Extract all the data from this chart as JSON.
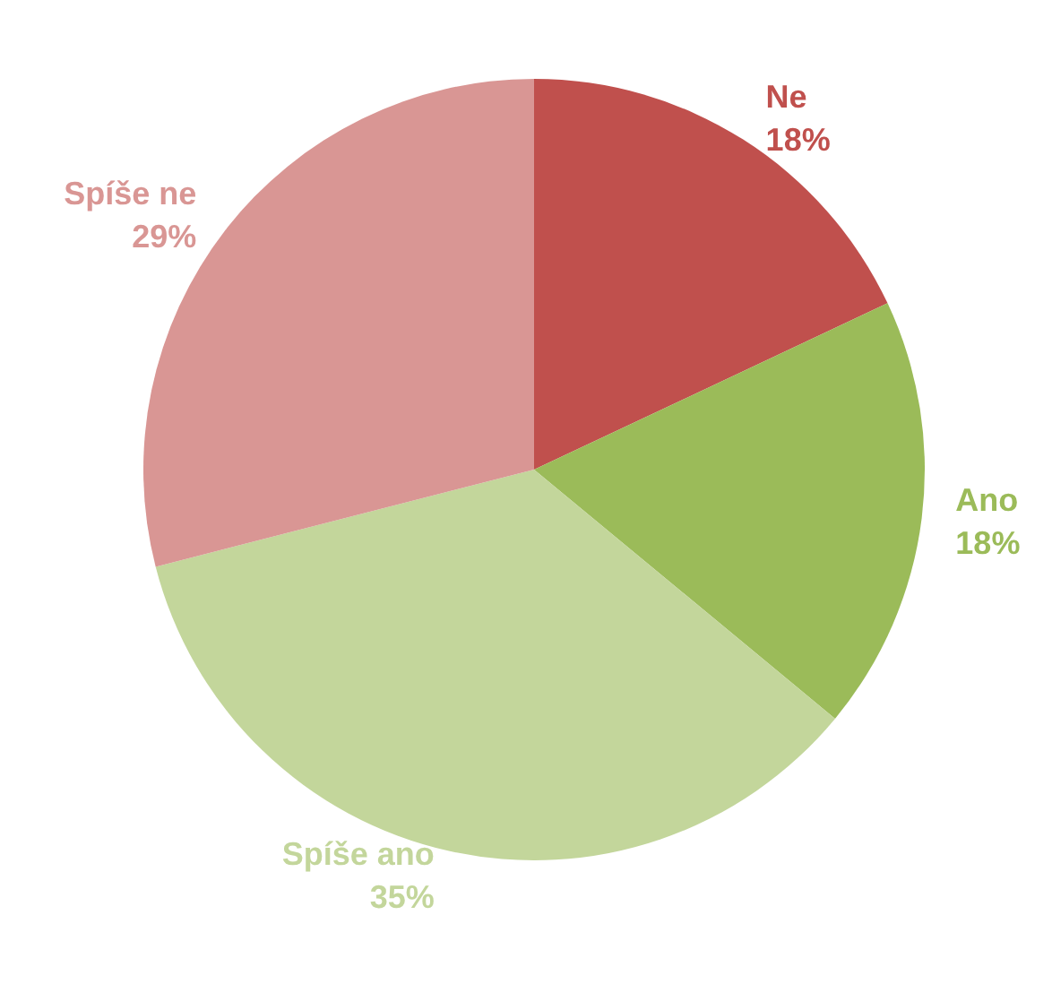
{
  "chart_data": {
    "type": "pie",
    "categories": [
      "Ne",
      "Ano",
      "Spíše ano",
      "Spíše ne"
    ],
    "values": [
      18,
      18,
      35,
      29
    ],
    "value_labels": [
      "18%",
      "18%",
      "35%",
      "29%"
    ],
    "colors": [
      "#c0504d",
      "#9bbb59",
      "#c3d69b",
      "#d99694"
    ],
    "legend": false
  }
}
